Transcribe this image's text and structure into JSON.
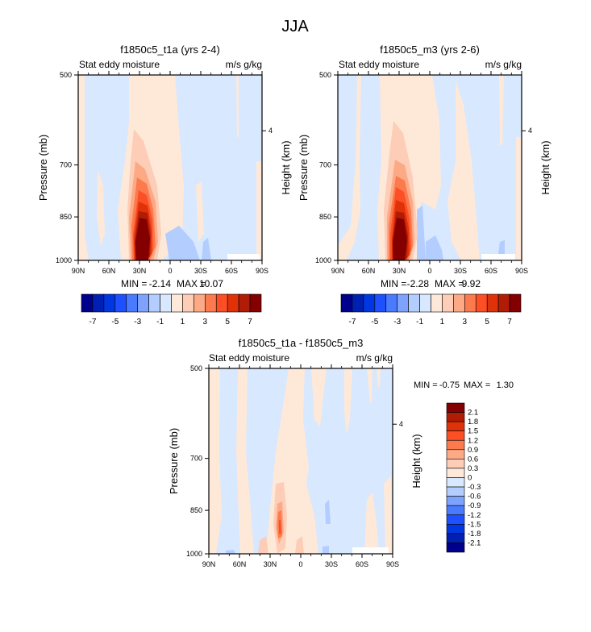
{
  "figure_title": "JJA",
  "chart_data": [
    {
      "type": "heatmap",
      "id": "panel1",
      "title": "f1850c5_t1a (yrs 2-4)",
      "left_label": "Stat eddy moisture",
      "right_label": "m/s g/kg",
      "xlabel": "",
      "ylabel": "Pressure (mb)",
      "ylabel_right": "Height (km)",
      "x_ticks": [
        "90N",
        "60N",
        "30N",
        "0",
        "30S",
        "60S",
        "90S"
      ],
      "x_tick_values": [
        90,
        60,
        30,
        0,
        -30,
        -60,
        -90
      ],
      "y_ticks": [
        "500",
        "700",
        "850",
        "1000"
      ],
      "y_tick_values": [
        500,
        700,
        850,
        1000
      ],
      "y_right_ticks": [
        "4"
      ],
      "xlim": [
        90,
        -90
      ],
      "ylim": [
        1000,
        500
      ],
      "min_label": "MIN =",
      "min_value": "-2.14",
      "max_label": "MAX =",
      "max_value": "10.07",
      "feature": {
        "peak_lat": 30,
        "peak_value": 10.07,
        "description": "maximum near 30N at low levels (850-1000 mb)"
      }
    },
    {
      "type": "heatmap",
      "id": "panel2",
      "title": "f1850c5_m3 (yrs 2-6)",
      "left_label": "Stat eddy moisture",
      "right_label": "m/s g/kg",
      "xlabel": "",
      "ylabel": "Pressure (mb)",
      "ylabel_right": "Height (km)",
      "x_ticks": [
        "90N",
        "60N",
        "30N",
        "0",
        "30S",
        "60S",
        "90S"
      ],
      "x_tick_values": [
        90,
        60,
        30,
        0,
        -30,
        -60,
        -90
      ],
      "y_ticks": [
        "500",
        "700",
        "850",
        "1000"
      ],
      "y_tick_values": [
        500,
        700,
        850,
        1000
      ],
      "y_right_ticks": [
        "4"
      ],
      "xlim": [
        90,
        -90
      ],
      "ylim": [
        1000,
        500
      ],
      "min_label": "MIN =",
      "min_value": "-2.28",
      "max_label": "MAX =",
      "max_value": "9.92",
      "feature": {
        "peak_lat": 30,
        "peak_value": 9.92,
        "description": "maximum near 30N at low levels (850-1000 mb)"
      }
    },
    {
      "type": "heatmap",
      "id": "panel3",
      "title": "f1850c5_t1a - f1850c5_m3",
      "left_label": "Stat eddy moisture",
      "right_label": "m/s g/kg",
      "xlabel": "",
      "ylabel": "Pressure (mb)",
      "ylabel_right": "Height (km)",
      "x_ticks": [
        "90N",
        "60N",
        "30N",
        "0",
        "30S",
        "60S",
        "90S"
      ],
      "x_tick_values": [
        90,
        60,
        30,
        0,
        -30,
        -60,
        -90
      ],
      "y_ticks": [
        "500",
        "700",
        "850",
        "1000"
      ],
      "y_tick_values": [
        500,
        700,
        850,
        1000
      ],
      "y_right_ticks": [
        "4"
      ],
      "xlim": [
        90,
        -90
      ],
      "ylim": [
        1000,
        500
      ],
      "min_label": "MIN =",
      "min_value": "-0.75",
      "max_label": "MAX =",
      "max_value": "1.30",
      "feature": {
        "peak_lat": 22,
        "peak_value": 1.3,
        "description": "positive anomaly near 20-25N around 900 mb"
      }
    }
  ],
  "colorbar_main": {
    "orientation": "horizontal",
    "labels": [
      "-7",
      "-5",
      "-3",
      "-1",
      "1",
      "3",
      "5",
      "7"
    ],
    "levels": [
      -7,
      -6,
      -5,
      -4,
      -3,
      -2,
      -1,
      0,
      1,
      2,
      3,
      4,
      5,
      6,
      7
    ],
    "colors": [
      "#00008c",
      "#0020b4",
      "#0037e1",
      "#1e50ff",
      "#4a7bff",
      "#7da3ff",
      "#b3cdff",
      "#d7e8ff",
      "#fee9d9",
      "#fdcdb7",
      "#fcaa85",
      "#fc7a4d",
      "#fc4f26",
      "#e03208",
      "#b01c06",
      "#840000"
    ]
  },
  "colorbar_diff": {
    "orientation": "vertical",
    "labels": [
      "2.1",
      "1.8",
      "1.5",
      "1.2",
      "0.9",
      "0.6",
      "0.3",
      "0",
      "-0.3",
      "-0.6",
      "-0.9",
      "-1.2",
      "-1.5",
      "-1.8",
      "-2.1"
    ],
    "colors": [
      "#840000",
      "#b01c06",
      "#e03208",
      "#fc4f26",
      "#fc7a4d",
      "#fcaa85",
      "#fdcdb7",
      "#fee9d9",
      "#d7e8ff",
      "#b3cdff",
      "#7da3ff",
      "#4a7bff",
      "#1e50ff",
      "#0037e1",
      "#0020b4",
      "#00008c"
    ]
  }
}
